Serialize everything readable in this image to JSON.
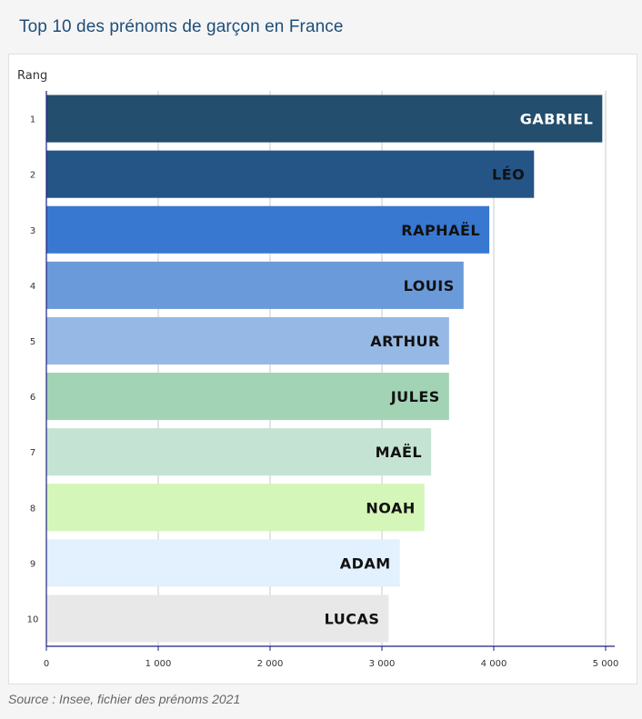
{
  "title": "Top 10 des prénoms de garçon en France",
  "source": "Source : Insee, fichier des prénoms 2021",
  "chart_data": {
    "type": "bar",
    "orientation": "horizontal",
    "ylabel": "Rang",
    "xlim": [
      0,
      5000
    ],
    "grid": true,
    "x_ticks": [
      {
        "value": 0,
        "label": "0"
      },
      {
        "value": 1000,
        "label": "1 000"
      },
      {
        "value": 2000,
        "label": "2 000"
      },
      {
        "value": 3000,
        "label": "3 000"
      },
      {
        "value": 4000,
        "label": "4 000"
      },
      {
        "value": 5000,
        "label": "5 000"
      }
    ],
    "bars": [
      {
        "rank": "1",
        "name": "GABRIEL",
        "value": 4970,
        "color": "#234e6d",
        "label_color": "#ffffff"
      },
      {
        "rank": "2",
        "name": "LÉO",
        "value": 4360,
        "color": "#255487",
        "label_color": "#111111"
      },
      {
        "rank": "3",
        "name": "RAPHAËL",
        "value": 3960,
        "color": "#3878d0",
        "label_color": "#111111"
      },
      {
        "rank": "4",
        "name": "LOUIS",
        "value": 3730,
        "color": "#6a9ad9",
        "label_color": "#111111"
      },
      {
        "rank": "5",
        "name": "ARTHUR",
        "value": 3600,
        "color": "#96b8e4",
        "label_color": "#111111"
      },
      {
        "rank": "6",
        "name": "JULES",
        "value": 3600,
        "color": "#a2d3b4",
        "label_color": "#111111"
      },
      {
        "rank": "7",
        "name": "MAËL",
        "value": 3440,
        "color": "#c5e3d3",
        "label_color": "#111111"
      },
      {
        "rank": "8",
        "name": "NOAH",
        "value": 3380,
        "color": "#d5f6b9",
        "label_color": "#111111"
      },
      {
        "rank": "9",
        "name": "ADAM",
        "value": 3160,
        "color": "#e3f0fd",
        "label_color": "#111111"
      },
      {
        "rank": "10",
        "name": "LUCAS",
        "value": 3060,
        "color": "#e8e8e8",
        "label_color": "#111111"
      }
    ]
  }
}
